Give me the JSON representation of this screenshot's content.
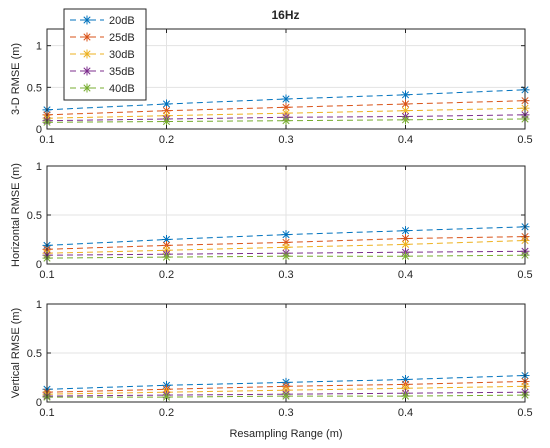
{
  "figure": {
    "title": "16Hz"
  },
  "legend": {
    "placement": "top-left",
    "entries": [
      "20dB",
      "25dB",
      "30dB",
      "35dB",
      "40dB"
    ]
  },
  "colors": {
    "20dB": "#0072BD",
    "25dB": "#D95319",
    "30dB": "#EDB120",
    "35dB": "#7E2F8E",
    "40dB": "#77AC30"
  },
  "chart_data": [
    {
      "type": "line",
      "title": "16Hz",
      "xlabel": "",
      "ylabel": "3-D RMSE (m)",
      "xlim": [
        0.1,
        0.5
      ],
      "ylim": [
        0,
        1.2
      ],
      "xticks": [
        "0.1",
        "0.2",
        "0.3",
        "0.4",
        "0.5"
      ],
      "yticks": [
        "0",
        "0.5",
        "1"
      ],
      "ytick_values": [
        0,
        0.5,
        1
      ],
      "grid": true,
      "line_style": "dashed",
      "marker": "asterisk",
      "x": [
        0.1,
        0.2,
        0.3,
        0.4,
        0.5
      ],
      "series": [
        {
          "name": "20dB",
          "values": [
            0.23,
            0.3,
            0.36,
            0.41,
            0.47
          ]
        },
        {
          "name": "25dB",
          "values": [
            0.17,
            0.22,
            0.26,
            0.3,
            0.34
          ]
        },
        {
          "name": "30dB",
          "values": [
            0.13,
            0.16,
            0.19,
            0.22,
            0.25
          ]
        },
        {
          "name": "35dB",
          "values": [
            0.1,
            0.12,
            0.14,
            0.15,
            0.17
          ]
        },
        {
          "name": "40dB",
          "values": [
            0.08,
            0.09,
            0.1,
            0.11,
            0.12
          ]
        }
      ]
    },
    {
      "type": "line",
      "title": "",
      "xlabel": "",
      "ylabel": "Horizontal RMSE (m)",
      "xlim": [
        0.1,
        0.5
      ],
      "ylim": [
        0,
        1
      ],
      "xticks": [
        "0.1",
        "0.2",
        "0.3",
        "0.4",
        "0.5"
      ],
      "yticks": [
        "0",
        "0.5",
        "1"
      ],
      "ytick_values": [
        0,
        0.5,
        1
      ],
      "grid": true,
      "line_style": "dashed",
      "marker": "asterisk",
      "x": [
        0.1,
        0.2,
        0.3,
        0.4,
        0.5
      ],
      "series": [
        {
          "name": "20dB",
          "values": [
            0.19,
            0.25,
            0.3,
            0.34,
            0.38
          ]
        },
        {
          "name": "25dB",
          "values": [
            0.15,
            0.19,
            0.22,
            0.26,
            0.28
          ]
        },
        {
          "name": "30dB",
          "values": [
            0.11,
            0.14,
            0.17,
            0.2,
            0.24
          ]
        },
        {
          "name": "35dB",
          "values": [
            0.09,
            0.1,
            0.11,
            0.12,
            0.13
          ]
        },
        {
          "name": "40dB",
          "values": [
            0.06,
            0.07,
            0.08,
            0.08,
            0.09
          ]
        }
      ]
    },
    {
      "type": "line",
      "title": "",
      "xlabel": "Resampling Range (m)",
      "ylabel": "Vertical RMSE (m)",
      "xlim": [
        0.1,
        0.5
      ],
      "ylim": [
        0,
        1
      ],
      "xticks": [
        "0.1",
        "0.2",
        "0.3",
        "0.4",
        "0.5"
      ],
      "yticks": [
        "0",
        "0.5",
        "1"
      ],
      "ytick_values": [
        0,
        0.5,
        1
      ],
      "grid": true,
      "line_style": "dashed",
      "marker": "asterisk",
      "x": [
        0.1,
        0.2,
        0.3,
        0.4,
        0.5
      ],
      "series": [
        {
          "name": "20dB",
          "values": [
            0.13,
            0.17,
            0.2,
            0.23,
            0.27
          ]
        },
        {
          "name": "25dB",
          "values": [
            0.1,
            0.13,
            0.16,
            0.18,
            0.21
          ]
        },
        {
          "name": "30dB",
          "values": [
            0.08,
            0.1,
            0.12,
            0.14,
            0.16
          ]
        },
        {
          "name": "35dB",
          "values": [
            0.06,
            0.07,
            0.08,
            0.09,
            0.1
          ]
        },
        {
          "name": "40dB",
          "values": [
            0.05,
            0.05,
            0.06,
            0.06,
            0.07
          ]
        }
      ]
    }
  ]
}
